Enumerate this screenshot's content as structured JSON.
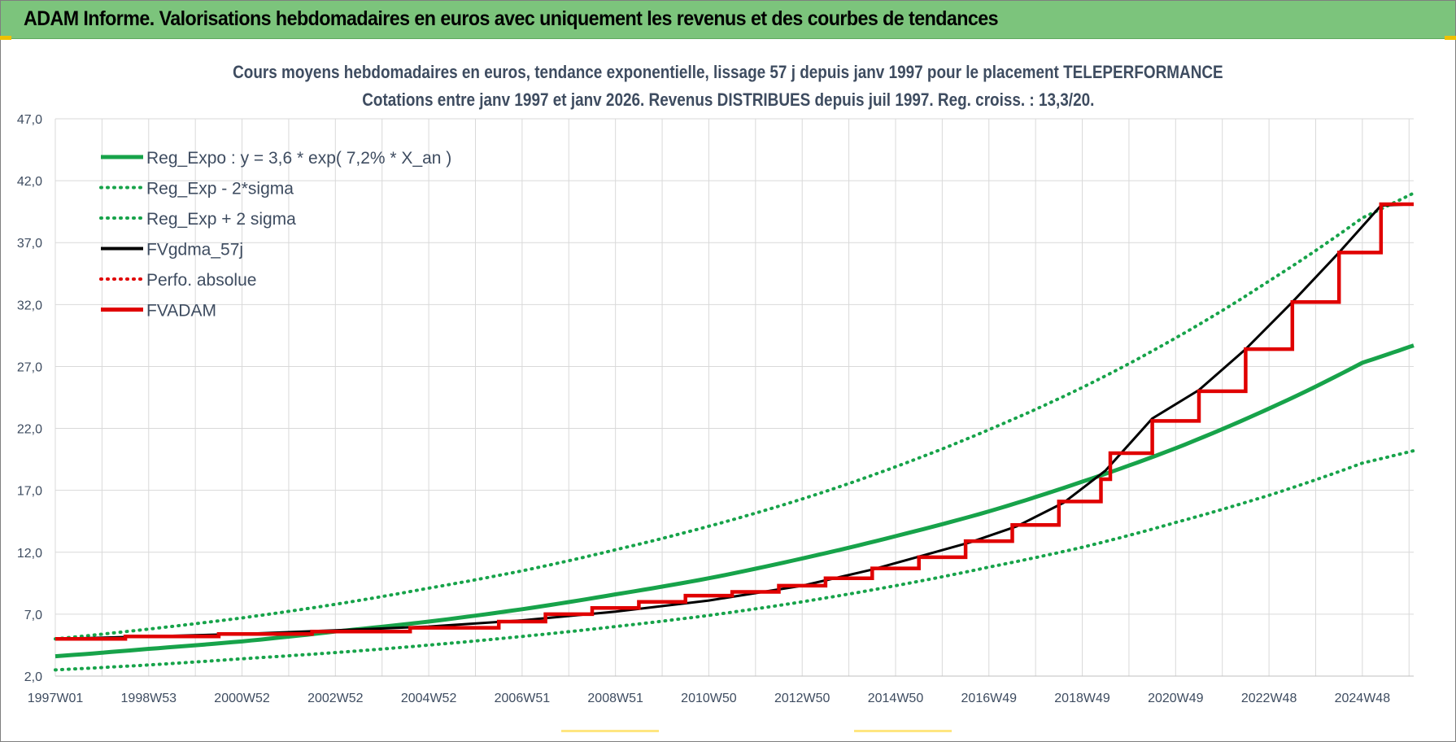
{
  "header": {
    "title": "ADAM Informe. Valorisations hebdomadaires en euros avec uniquement les revenus et des courbes de tendances"
  },
  "chart_data": {
    "type": "line",
    "title": "Cours moyens hebdomadaires en euros, tendance exponentielle, lissage 57 j depuis janv 1997 pour le placement TELEPERFORMANCE",
    "subtitle": "Cotations entre janv 1997 et janv 2026. Revenus DISTRIBUES depuis juil 1997. Reg. croiss. : 13,3/20.",
    "xlabel": "",
    "ylabel": "",
    "ylim": [
      2.0,
      47.0
    ],
    "yticks": [
      "2,0",
      "7,0",
      "12,0",
      "17,0",
      "22,0",
      "27,0",
      "32,0",
      "37,0",
      "42,0",
      "47,0"
    ],
    "xlim": [
      1997.0,
      2026.1
    ],
    "xticks": [
      "1997W01",
      "1998W53",
      "2000W52",
      "2002W52",
      "2004W52",
      "2006W51",
      "2008W51",
      "2010W50",
      "2012W50",
      "2014W50",
      "2016W49",
      "2018W49",
      "2020W49",
      "2022W48",
      "2024W48"
    ],
    "grid": true,
    "legend_position": "top-left",
    "series": [
      {
        "name": "Reg_Expo : y = 3,6 * exp( 7,2% *  X_an )",
        "color": "#17a34a",
        "style": "solid",
        "x": [
          1997.0,
          1999.0,
          2001.0,
          2003.0,
          2005.0,
          2007.0,
          2009.0,
          2011.0,
          2013.0,
          2015.0,
          2017.0,
          2019.0,
          2021.0,
          2023.0,
          2025.0,
          2026.1
        ],
        "values": [
          3.6,
          4.2,
          4.8,
          5.6,
          6.4,
          7.4,
          8.6,
          9.9,
          11.5,
          13.3,
          15.3,
          17.7,
          20.4,
          23.6,
          27.3,
          28.7
        ]
      },
      {
        "name": "Reg_Exp - 2*sigma",
        "color": "#17a34a",
        "style": "dotted",
        "x": [
          1997.0,
          1999.0,
          2001.0,
          2003.0,
          2005.0,
          2007.0,
          2009.0,
          2011.0,
          2013.0,
          2015.0,
          2017.0,
          2019.0,
          2021.0,
          2023.0,
          2025.0,
          2026.1
        ],
        "values": [
          2.5,
          2.9,
          3.4,
          3.9,
          4.5,
          5.2,
          6.0,
          6.9,
          8.0,
          9.3,
          10.8,
          12.4,
          14.4,
          16.6,
          19.2,
          20.2
        ]
      },
      {
        "name": "Reg_Exp + 2 sigma",
        "color": "#17a34a",
        "style": "dotted",
        "x": [
          1997.0,
          1999.0,
          2001.0,
          2003.0,
          2005.0,
          2007.0,
          2009.0,
          2011.0,
          2013.0,
          2015.0,
          2017.0,
          2019.0,
          2021.0,
          2023.0,
          2025.0,
          2026.1
        ],
        "values": [
          5.0,
          5.8,
          6.7,
          7.8,
          9.1,
          10.5,
          12.2,
          14.1,
          16.3,
          18.9,
          21.9,
          25.3,
          29.3,
          33.9,
          39.0,
          41.0
        ]
      },
      {
        "name": "FVgdma_57j",
        "color": "#000000",
        "style": "solid",
        "x": [
          1997.0,
          1999.0,
          2001.0,
          2003.0,
          2005.0,
          2007.0,
          2009.0,
          2011.0,
          2013.0,
          2014.5,
          2016.6,
          2017.6,
          2018.6,
          2019.5,
          2020.5,
          2021.5,
          2022.5,
          2023.5,
          2024.5,
          2025.4,
          2026.1
        ],
        "values": [
          5.0,
          5.2,
          5.4,
          5.7,
          6.0,
          6.5,
          7.2,
          8.1,
          9.3,
          10.6,
          12.8,
          14.1,
          16.0,
          18.6,
          22.8,
          25.1,
          28.4,
          32.2,
          36.2,
          40.0,
          40.1
        ]
      },
      {
        "name": "Perfo. absolue",
        "color": "#e00000",
        "style": "dotted",
        "x": [],
        "values": []
      },
      {
        "name": "FVADAM",
        "color": "#e00000",
        "style": "step",
        "x": [
          1997.0,
          1998.5,
          2000.5,
          2002.5,
          2004.6,
          2006.5,
          2007.5,
          2008.5,
          2009.5,
          2010.5,
          2011.5,
          2012.5,
          2013.5,
          2014.5,
          2015.5,
          2016.5,
          2017.5,
          2018.5,
          2019.4,
          2019.6,
          2020.5,
          2021.5,
          2022.5,
          2023.5,
          2024.5,
          2025.4,
          2026.1
        ],
        "values": [
          5.0,
          5.2,
          5.4,
          5.6,
          5.9,
          6.4,
          7.0,
          7.5,
          8.0,
          8.5,
          8.8,
          9.3,
          9.9,
          10.7,
          11.6,
          12.9,
          14.2,
          16.1,
          17.9,
          20.0,
          22.6,
          25.0,
          28.4,
          32.2,
          36.2,
          40.1,
          40.1
        ]
      }
    ]
  }
}
